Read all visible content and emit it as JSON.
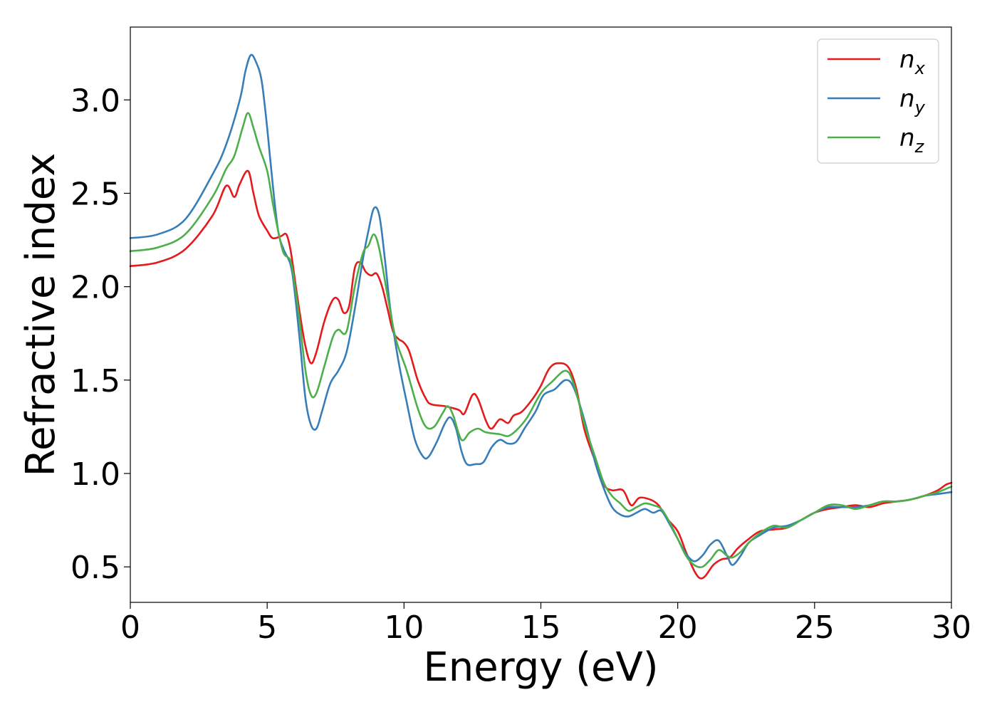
{
  "chart_data": {
    "type": "line",
    "xlabel": "Energy (eV)",
    "ylabel": "Refractive index",
    "xlim": [
      0,
      30
    ],
    "ylim": [
      0.31,
      3.39
    ],
    "xticks": [
      0,
      5,
      10,
      15,
      20,
      25,
      30
    ],
    "xtick_labels": [
      "0",
      "5",
      "10",
      "15",
      "20",
      "25",
      "30"
    ],
    "yticks": [
      0.5,
      1.0,
      1.5,
      2.0,
      2.5,
      3.0
    ],
    "ytick_labels": [
      "0.5",
      "1.0",
      "1.5",
      "2.0",
      "2.5",
      "3.0"
    ],
    "grid": false,
    "legend_position": "top-right",
    "series": [
      {
        "name": "n_x",
        "label_base": "n",
        "label_sub": "x",
        "color": "#e41a1c",
        "points": [
          [
            0,
            2.11
          ],
          [
            1,
            2.13
          ],
          [
            2,
            2.2
          ],
          [
            3,
            2.38
          ],
          [
            3.5,
            2.54
          ],
          [
            3.8,
            2.48
          ],
          [
            4.0,
            2.55
          ],
          [
            4.3,
            2.62
          ],
          [
            4.5,
            2.5
          ],
          [
            4.7,
            2.38
          ],
          [
            5.0,
            2.3
          ],
          [
            5.2,
            2.26
          ],
          [
            5.5,
            2.27
          ],
          [
            5.7,
            2.28
          ],
          [
            5.85,
            2.2
          ],
          [
            6.0,
            2.05
          ],
          [
            6.2,
            1.85
          ],
          [
            6.4,
            1.68
          ],
          [
            6.6,
            1.59
          ],
          [
            6.8,
            1.65
          ],
          [
            7.1,
            1.82
          ],
          [
            7.4,
            1.93
          ],
          [
            7.6,
            1.93
          ],
          [
            7.8,
            1.86
          ],
          [
            8.0,
            1.9
          ],
          [
            8.2,
            2.1
          ],
          [
            8.4,
            2.13
          ],
          [
            8.6,
            2.08
          ],
          [
            8.8,
            2.06
          ],
          [
            9.0,
            2.07
          ],
          [
            9.2,
            2.0
          ],
          [
            9.4,
            1.88
          ],
          [
            9.6,
            1.76
          ],
          [
            9.8,
            1.72
          ],
          [
            10.0,
            1.7
          ],
          [
            10.2,
            1.65
          ],
          [
            10.5,
            1.5
          ],
          [
            10.8,
            1.4
          ],
          [
            11.0,
            1.37
          ],
          [
            11.5,
            1.36
          ],
          [
            12.0,
            1.34
          ],
          [
            12.2,
            1.32
          ],
          [
            12.5,
            1.42
          ],
          [
            12.7,
            1.4
          ],
          [
            13.0,
            1.28
          ],
          [
            13.2,
            1.24
          ],
          [
            13.5,
            1.29
          ],
          [
            13.8,
            1.27
          ],
          [
            14.0,
            1.31
          ],
          [
            14.3,
            1.33
          ],
          [
            14.7,
            1.4
          ],
          [
            15.0,
            1.47
          ],
          [
            15.3,
            1.56
          ],
          [
            15.6,
            1.59
          ],
          [
            16.0,
            1.57
          ],
          [
            16.3,
            1.45
          ],
          [
            16.6,
            1.23
          ],
          [
            17.0,
            1.06
          ],
          [
            17.3,
            0.94
          ],
          [
            17.6,
            0.91
          ],
          [
            18.0,
            0.91
          ],
          [
            18.3,
            0.83
          ],
          [
            18.6,
            0.87
          ],
          [
            19.0,
            0.86
          ],
          [
            19.3,
            0.83
          ],
          [
            19.6,
            0.76
          ],
          [
            20.0,
            0.69
          ],
          [
            20.3,
            0.58
          ],
          [
            20.6,
            0.48
          ],
          [
            20.8,
            0.44
          ],
          [
            21.0,
            0.45
          ],
          [
            21.3,
            0.51
          ],
          [
            21.6,
            0.54
          ],
          [
            21.9,
            0.55
          ],
          [
            22.2,
            0.6
          ],
          [
            22.6,
            0.65
          ],
          [
            23.0,
            0.69
          ],
          [
            23.5,
            0.7
          ],
          [
            24.0,
            0.71
          ],
          [
            24.5,
            0.75
          ],
          [
            25.0,
            0.79
          ],
          [
            25.5,
            0.81
          ],
          [
            26.0,
            0.82
          ],
          [
            26.5,
            0.83
          ],
          [
            27.0,
            0.82
          ],
          [
            27.5,
            0.84
          ],
          [
            28.0,
            0.85
          ],
          [
            28.5,
            0.86
          ],
          [
            29.0,
            0.88
          ],
          [
            29.5,
            0.91
          ],
          [
            29.8,
            0.94
          ],
          [
            30.0,
            0.95
          ]
        ]
      },
      {
        "name": "n_y",
        "label_base": "n",
        "label_sub": "y",
        "color": "#377eb8",
        "points": [
          [
            0,
            2.26
          ],
          [
            1,
            2.28
          ],
          [
            2,
            2.36
          ],
          [
            3,
            2.6
          ],
          [
            3.5,
            2.76
          ],
          [
            4.0,
            3.0
          ],
          [
            4.2,
            3.15
          ],
          [
            4.4,
            3.24
          ],
          [
            4.6,
            3.2
          ],
          [
            4.8,
            3.1
          ],
          [
            5.0,
            2.85
          ],
          [
            5.2,
            2.55
          ],
          [
            5.4,
            2.3
          ],
          [
            5.6,
            2.2
          ],
          [
            5.85,
            2.12
          ],
          [
            6.0,
            1.98
          ],
          [
            6.2,
            1.7
          ],
          [
            6.4,
            1.4
          ],
          [
            6.6,
            1.26
          ],
          [
            6.8,
            1.24
          ],
          [
            7.0,
            1.33
          ],
          [
            7.3,
            1.48
          ],
          [
            7.6,
            1.55
          ],
          [
            7.9,
            1.65
          ],
          [
            8.2,
            1.88
          ],
          [
            8.5,
            2.15
          ],
          [
            8.7,
            2.3
          ],
          [
            8.9,
            2.42
          ],
          [
            9.1,
            2.38
          ],
          [
            9.3,
            2.15
          ],
          [
            9.5,
            1.88
          ],
          [
            9.8,
            1.6
          ],
          [
            10.1,
            1.38
          ],
          [
            10.4,
            1.18
          ],
          [
            10.7,
            1.09
          ],
          [
            10.9,
            1.09
          ],
          [
            11.2,
            1.17
          ],
          [
            11.5,
            1.27
          ],
          [
            11.7,
            1.3
          ],
          [
            11.9,
            1.24
          ],
          [
            12.1,
            1.12
          ],
          [
            12.3,
            1.05
          ],
          [
            12.6,
            1.05
          ],
          [
            12.9,
            1.06
          ],
          [
            13.2,
            1.14
          ],
          [
            13.5,
            1.18
          ],
          [
            13.8,
            1.16
          ],
          [
            14.1,
            1.17
          ],
          [
            14.4,
            1.24
          ],
          [
            14.8,
            1.33
          ],
          [
            15.1,
            1.42
          ],
          [
            15.5,
            1.45
          ],
          [
            15.9,
            1.5
          ],
          [
            16.2,
            1.46
          ],
          [
            16.6,
            1.28
          ],
          [
            17.0,
            1.05
          ],
          [
            17.3,
            0.92
          ],
          [
            17.6,
            0.82
          ],
          [
            17.9,
            0.78
          ],
          [
            18.2,
            0.77
          ],
          [
            18.5,
            0.79
          ],
          [
            18.8,
            0.81
          ],
          [
            19.1,
            0.79
          ],
          [
            19.4,
            0.8
          ],
          [
            19.7,
            0.73
          ],
          [
            20.0,
            0.65
          ],
          [
            20.3,
            0.57
          ],
          [
            20.6,
            0.53
          ],
          [
            20.9,
            0.56
          ],
          [
            21.2,
            0.62
          ],
          [
            21.5,
            0.64
          ],
          [
            21.8,
            0.56
          ],
          [
            22.0,
            0.51
          ],
          [
            22.3,
            0.56
          ],
          [
            22.6,
            0.63
          ],
          [
            23.0,
            0.67
          ],
          [
            23.5,
            0.71
          ],
          [
            24.0,
            0.72
          ],
          [
            24.5,
            0.75
          ],
          [
            25.0,
            0.79
          ],
          [
            25.5,
            0.82
          ],
          [
            26.0,
            0.82
          ],
          [
            26.5,
            0.82
          ],
          [
            27.0,
            0.83
          ],
          [
            27.5,
            0.85
          ],
          [
            28.0,
            0.85
          ],
          [
            28.5,
            0.86
          ],
          [
            29.0,
            0.88
          ],
          [
            29.5,
            0.89
          ],
          [
            30.0,
            0.9
          ]
        ]
      },
      {
        "name": "n_z",
        "label_base": "n",
        "label_sub": "z",
        "color": "#4daf4a",
        "points": [
          [
            0,
            2.19
          ],
          [
            1,
            2.21
          ],
          [
            2,
            2.28
          ],
          [
            3,
            2.48
          ],
          [
            3.5,
            2.63
          ],
          [
            3.8,
            2.7
          ],
          [
            4.1,
            2.85
          ],
          [
            4.3,
            2.93
          ],
          [
            4.5,
            2.85
          ],
          [
            4.7,
            2.75
          ],
          [
            5.0,
            2.62
          ],
          [
            5.2,
            2.45
          ],
          [
            5.4,
            2.3
          ],
          [
            5.6,
            2.18
          ],
          [
            5.85,
            2.14
          ],
          [
            6.0,
            2.02
          ],
          [
            6.2,
            1.8
          ],
          [
            6.4,
            1.55
          ],
          [
            6.6,
            1.42
          ],
          [
            6.8,
            1.43
          ],
          [
            7.1,
            1.58
          ],
          [
            7.4,
            1.73
          ],
          [
            7.6,
            1.77
          ],
          [
            7.9,
            1.76
          ],
          [
            8.2,
            2.0
          ],
          [
            8.5,
            2.18
          ],
          [
            8.7,
            2.22
          ],
          [
            8.9,
            2.28
          ],
          [
            9.1,
            2.2
          ],
          [
            9.4,
            1.95
          ],
          [
            9.7,
            1.72
          ],
          [
            10.1,
            1.55
          ],
          [
            10.5,
            1.35
          ],
          [
            10.8,
            1.25
          ],
          [
            11.1,
            1.25
          ],
          [
            11.4,
            1.32
          ],
          [
            11.6,
            1.36
          ],
          [
            11.8,
            1.31
          ],
          [
            12.1,
            1.18
          ],
          [
            12.4,
            1.22
          ],
          [
            12.7,
            1.24
          ],
          [
            13.0,
            1.22
          ],
          [
            13.5,
            1.21
          ],
          [
            13.8,
            1.2
          ],
          [
            14.1,
            1.23
          ],
          [
            14.5,
            1.3
          ],
          [
            15.0,
            1.43
          ],
          [
            15.4,
            1.49
          ],
          [
            15.9,
            1.55
          ],
          [
            16.2,
            1.48
          ],
          [
            16.6,
            1.26
          ],
          [
            17.0,
            1.08
          ],
          [
            17.3,
            0.95
          ],
          [
            17.6,
            0.88
          ],
          [
            17.9,
            0.84
          ],
          [
            18.2,
            0.8
          ],
          [
            18.5,
            0.82
          ],
          [
            18.8,
            0.84
          ],
          [
            19.1,
            0.83
          ],
          [
            19.4,
            0.81
          ],
          [
            19.7,
            0.74
          ],
          [
            20.0,
            0.65
          ],
          [
            20.3,
            0.56
          ],
          [
            20.6,
            0.51
          ],
          [
            20.9,
            0.5
          ],
          [
            21.2,
            0.54
          ],
          [
            21.5,
            0.59
          ],
          [
            21.8,
            0.56
          ],
          [
            22.0,
            0.55
          ],
          [
            22.3,
            0.58
          ],
          [
            22.6,
            0.63
          ],
          [
            23.0,
            0.68
          ],
          [
            23.5,
            0.72
          ],
          [
            24.0,
            0.71
          ],
          [
            24.5,
            0.75
          ],
          [
            25.0,
            0.79
          ],
          [
            25.5,
            0.83
          ],
          [
            26.0,
            0.83
          ],
          [
            26.5,
            0.81
          ],
          [
            27.0,
            0.83
          ],
          [
            27.5,
            0.85
          ],
          [
            28.0,
            0.85
          ],
          [
            28.5,
            0.86
          ],
          [
            29.0,
            0.88
          ],
          [
            29.5,
            0.9
          ],
          [
            30.0,
            0.93
          ]
        ]
      }
    ]
  }
}
